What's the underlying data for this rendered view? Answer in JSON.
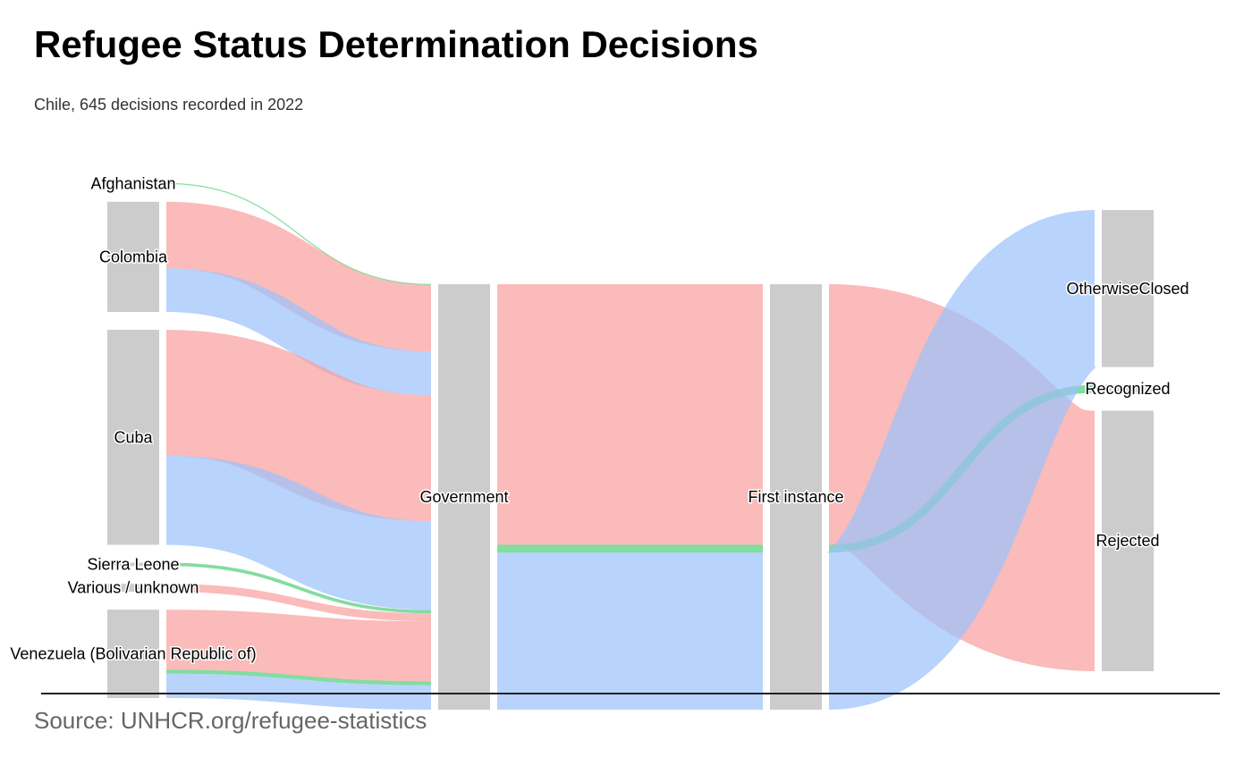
{
  "title": "Refugee Status Determination Decisions",
  "subtitle": "Chile, 645 decisions recorded in 2022",
  "source": "Source: UNHCR.org/refugee-statistics",
  "chart_data": {
    "type": "sankey",
    "total": 645,
    "colors": {
      "node": "#cccccc",
      "Rejected": "#f8a19f",
      "OtherwiseClosed": "#9cc2fb",
      "Recognized": "#5ad080"
    },
    "columns": [
      [
        {
          "id": "Afghanistan",
          "label": "Afghanistan"
        },
        {
          "id": "Colombia",
          "label": "Colombia"
        },
        {
          "id": "Cuba",
          "label": "Cuba"
        },
        {
          "id": "Sierra Leone",
          "label": "Sierra Leone"
        },
        {
          "id": "Various / unknown",
          "label": "Various / unknown"
        },
        {
          "id": "Venezuela",
          "label": "Venezuela (Bolivarian Republic of)"
        }
      ],
      [
        {
          "id": "Government",
          "label": "Government"
        }
      ],
      [
        {
          "id": "First instance",
          "label": "First instance"
        }
      ],
      [
        {
          "id": "OtherwiseClosed",
          "label": "OtherwiseClosed"
        },
        {
          "id": "Recognized",
          "label": "Recognized"
        },
        {
          "id": "Rejected",
          "label": "Rejected"
        }
      ]
    ],
    "links": [
      {
        "source": "Afghanistan",
        "target": "Government",
        "value": 1,
        "decision": "Recognized"
      },
      {
        "source": "Colombia",
        "target": "Government",
        "value": 101,
        "decision": "Rejected"
      },
      {
        "source": "Colombia",
        "target": "Government",
        "value": 66,
        "decision": "OtherwiseClosed"
      },
      {
        "source": "Cuba",
        "target": "Government",
        "value": 191,
        "decision": "Rejected"
      },
      {
        "source": "Cuba",
        "target": "Government",
        "value": 135,
        "decision": "OtherwiseClosed"
      },
      {
        "source": "Sierra Leone",
        "target": "Government",
        "value": 5,
        "decision": "Recognized"
      },
      {
        "source": "Various / unknown",
        "target": "Government",
        "value": 12,
        "decision": "Rejected"
      },
      {
        "source": "Venezuela",
        "target": "Government",
        "value": 91,
        "decision": "Rejected"
      },
      {
        "source": "Venezuela",
        "target": "Government",
        "value": 6,
        "decision": "Recognized"
      },
      {
        "source": "Venezuela",
        "target": "Government",
        "value": 37,
        "decision": "OtherwiseClosed"
      },
      {
        "source": "Government",
        "target": "First instance",
        "value": 395,
        "decision": "Rejected"
      },
      {
        "source": "Government",
        "target": "First instance",
        "value": 12,
        "decision": "Recognized"
      },
      {
        "source": "Government",
        "target": "First instance",
        "value": 238,
        "decision": "OtherwiseClosed"
      },
      {
        "source": "First instance",
        "target": "Rejected",
        "value": 395,
        "decision": "Rejected"
      },
      {
        "source": "First instance",
        "target": "Recognized",
        "value": 12,
        "decision": "Recognized"
      },
      {
        "source": "First instance",
        "target": "OtherwiseClosed",
        "value": 238,
        "decision": "OtherwiseClosed"
      }
    ]
  }
}
